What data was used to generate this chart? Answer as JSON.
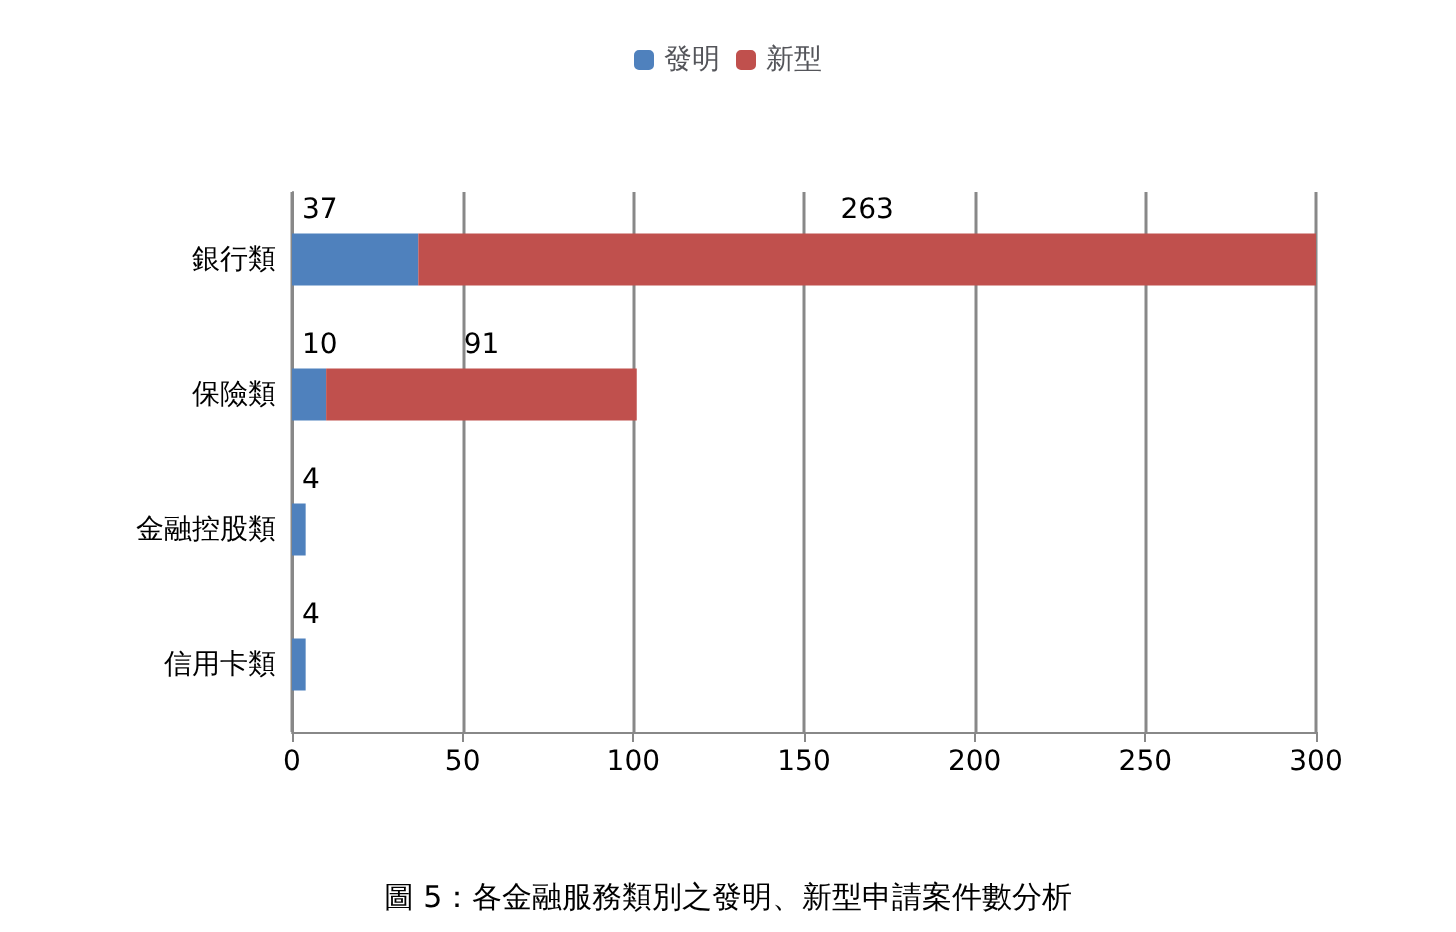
{
  "chart_data": {
    "type": "bar",
    "orientation": "horizontal",
    "stacked": true,
    "categories": [
      "銀行類",
      "保險類",
      "金融控股類",
      "信用卡類"
    ],
    "series": [
      {
        "name": "發明",
        "color": "#4f81bd",
        "values": [
          37,
          10,
          4,
          4
        ],
        "value_labels": [
          "37",
          "10",
          "4",
          "4"
        ]
      },
      {
        "name": "新型",
        "color": "#c0504d",
        "values": [
          263,
          91,
          0,
          0
        ],
        "value_labels": [
          "263",
          "91",
          null,
          null
        ]
      }
    ],
    "xlim": [
      0,
      300
    ],
    "xticks": [
      0,
      50,
      100,
      150,
      200,
      250,
      300
    ],
    "grid": "x",
    "legend": "top",
    "annotations": [
      "圖 5：各金融服務類別之發明、新型申請案件數分析"
    ]
  }
}
